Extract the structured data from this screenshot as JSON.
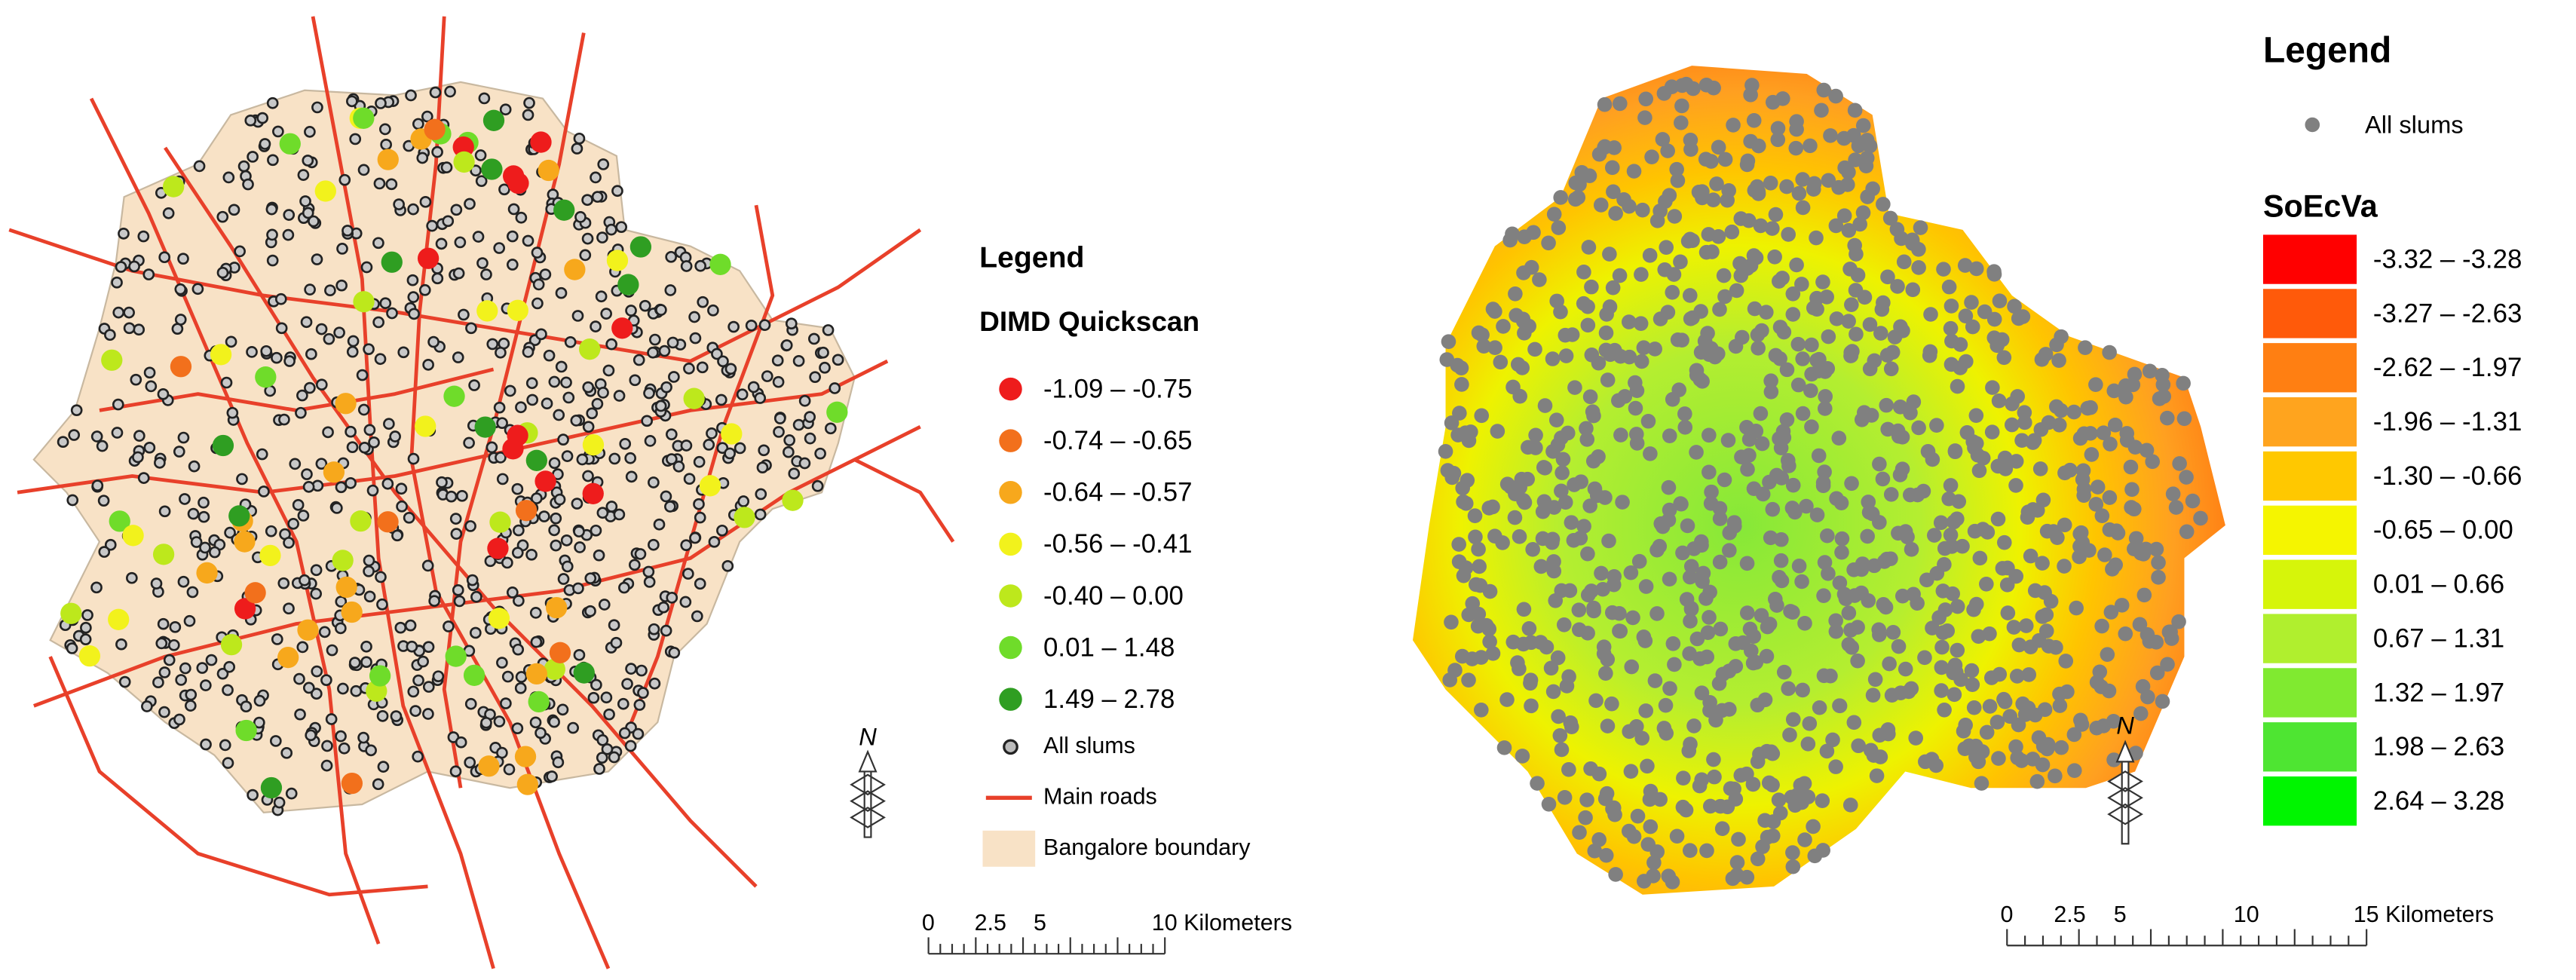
{
  "left_map": {
    "legend_title": "Legend",
    "layer_title": "DIMD Quickscan",
    "classes": [
      {
        "label": "-1.09 – -0.75",
        "color": "#ee1c1c"
      },
      {
        "label": "-0.74 – -0.65",
        "color": "#f2701c"
      },
      {
        "label": "-0.64 – -0.57",
        "color": "#f7a81c"
      },
      {
        "label": "-0.56 – -0.41",
        "color": "#f2f21c"
      },
      {
        "label": "-0.40 – 0.00",
        "color": "#bde81c"
      },
      {
        "label": "0.01 – 1.48",
        "color": "#6fdc2a"
      },
      {
        "label": "1.49 – 2.78",
        "color": "#2f9e22"
      }
    ],
    "points_label": "All slums",
    "roads_label": "Main roads",
    "boundary_label": "Bangalore boundary",
    "north": "N",
    "scale_labels": [
      "0",
      "2.5",
      "5",
      "10 Kilometers"
    ]
  },
  "right_map": {
    "legend_title": "Legend",
    "points_label": "All slums",
    "layer_title": "SoEcVa",
    "classes": [
      {
        "label": "-3.32 – -3.28",
        "color": "#ff0000"
      },
      {
        "label": "-3.27 – -2.63",
        "color": "#ff5a0a"
      },
      {
        "label": "-2.62 – -1.97",
        "color": "#ff7f12"
      },
      {
        "label": "-1.96 – -1.31",
        "color": "#ffa41e"
      },
      {
        "label": "-1.30 – -0.66",
        "color": "#ffc800"
      },
      {
        "label": "-0.65 – 0.00",
        "color": "#f5f500"
      },
      {
        "label": "0.01 – 0.66",
        "color": "#d6f50a"
      },
      {
        "label": "0.67 – 1.31",
        "color": "#b0ef2e"
      },
      {
        "label": "1.32 – 1.97",
        "color": "#80ea30"
      },
      {
        "label": "1.98 – 2.63",
        "color": "#4ee532"
      },
      {
        "label": "2.64 – 3.28",
        "color": "#00f500"
      }
    ],
    "north": "N",
    "scale_labels": [
      "0",
      "2.5",
      "5",
      "10",
      "15 Kilometers"
    ]
  }
}
